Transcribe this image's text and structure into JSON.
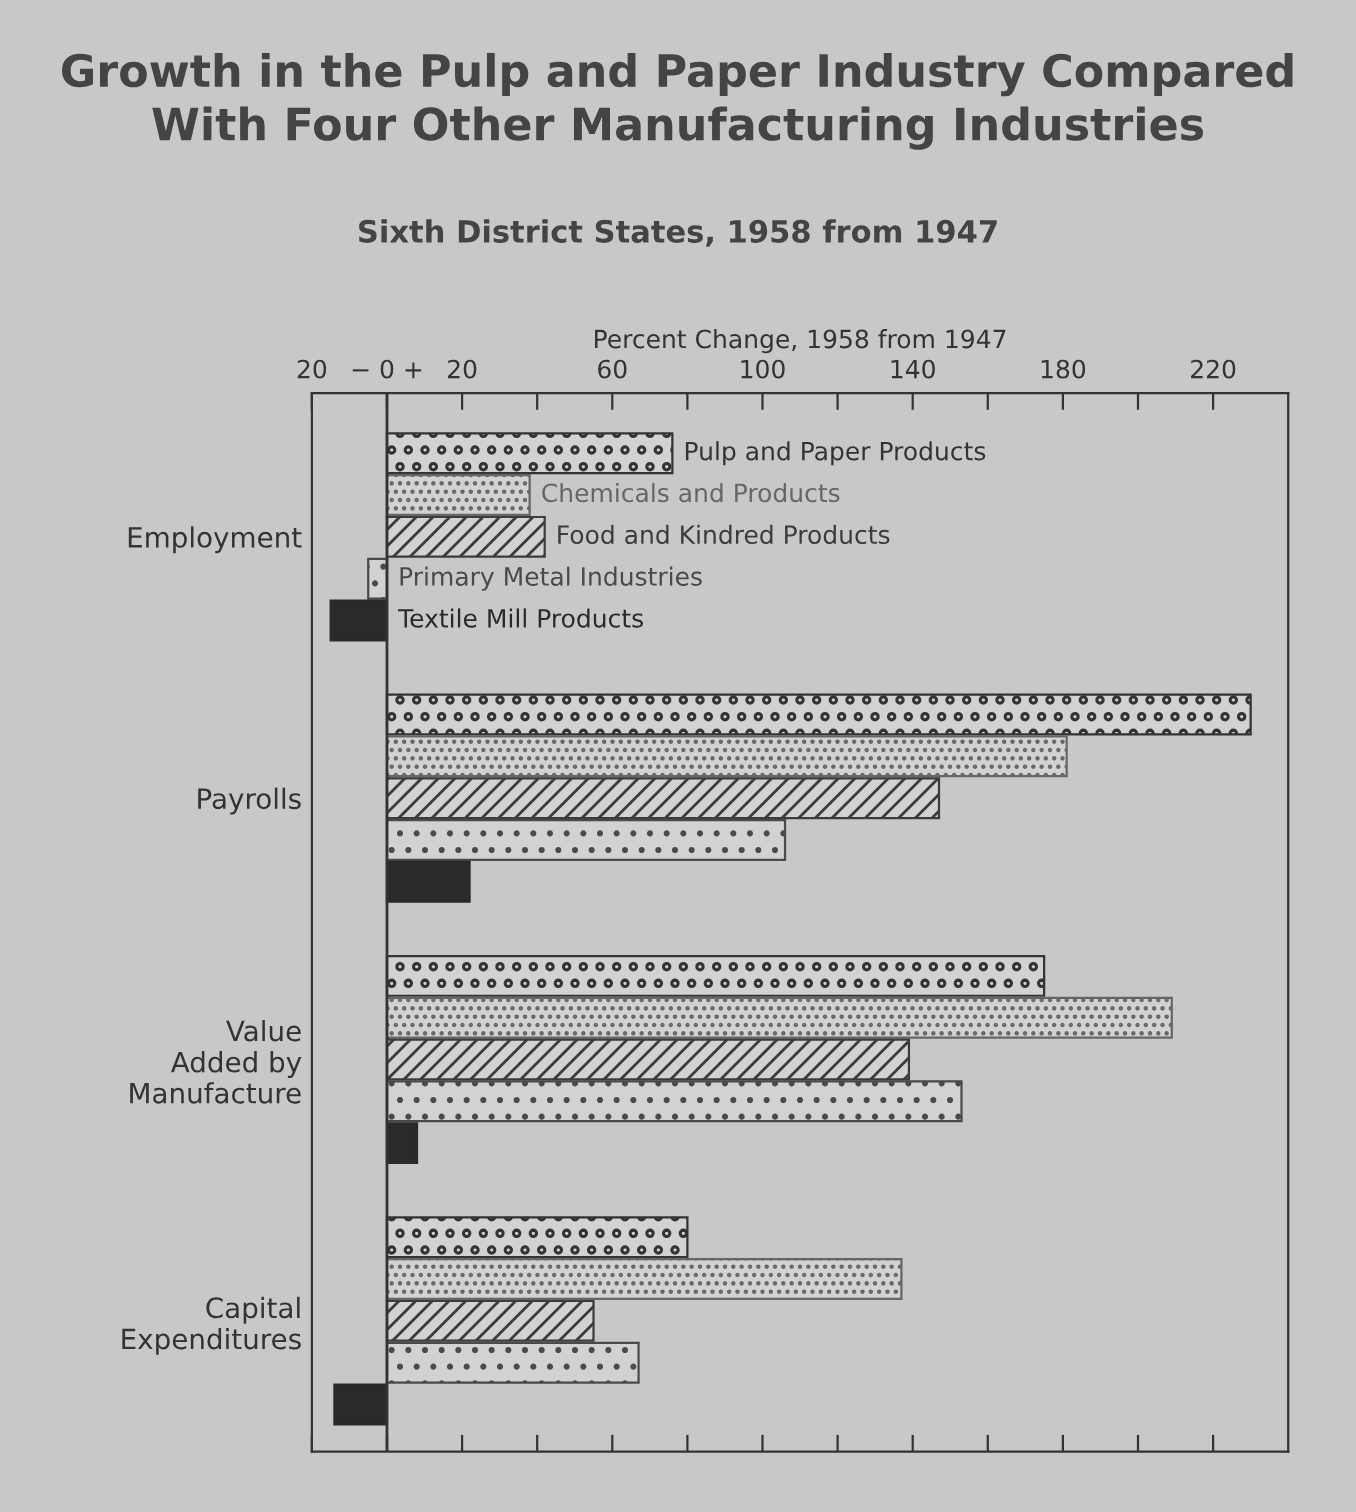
{
  "chart_data": {
    "type": "bar",
    "orientation": "horizontal",
    "title": "Growth in the Pulp and Paper Industry Compared\nWith Four Other Manufacturing Industries",
    "subtitle": "Sixth District States, 1958 from 1947",
    "xlabel": "Percent Change, 1958 from 1947",
    "categories": [
      "Employment",
      "Payrolls",
      "Value\nAdded by\nManufacture",
      "Capital\nExpenditures"
    ],
    "series": [
      {
        "name": "Pulp and Paper Products",
        "color": "#333333",
        "values": [
          76,
          230,
          175,
          80
        ]
      },
      {
        "name": "Chemicals and Products",
        "color": "#666666",
        "values": [
          38,
          181,
          209,
          137
        ]
      },
      {
        "name": "Food and Kindred Products",
        "color": "#3c3c3c",
        "values": [
          42,
          147,
          139,
          55
        ]
      },
      {
        "name": "Primary Metal Industries",
        "color": "#4a4a4a",
        "values": [
          -5,
          106,
          153,
          67
        ]
      },
      {
        "name": "Textile Mill Products",
        "color": "#2a2a2a",
        "values": [
          -15,
          22,
          8,
          -14
        ]
      }
    ],
    "xlim": [
      -20,
      240
    ],
    "xticks": [
      {
        "value": -20,
        "label": "20"
      },
      {
        "value": 0,
        "label": "− 0 +"
      },
      20,
      {
        "value": 40,
        "label": null
      },
      60,
      {
        "value": 80,
        "label": null
      },
      100,
      {
        "value": 120,
        "label": null
      },
      140,
      {
        "value": 160,
        "label": null
      },
      180,
      {
        "value": 200,
        "label": null
      },
      220
    ],
    "ref_lines": [
      {
        "axis": "x",
        "value": 0
      }
    ],
    "legend": false
  }
}
